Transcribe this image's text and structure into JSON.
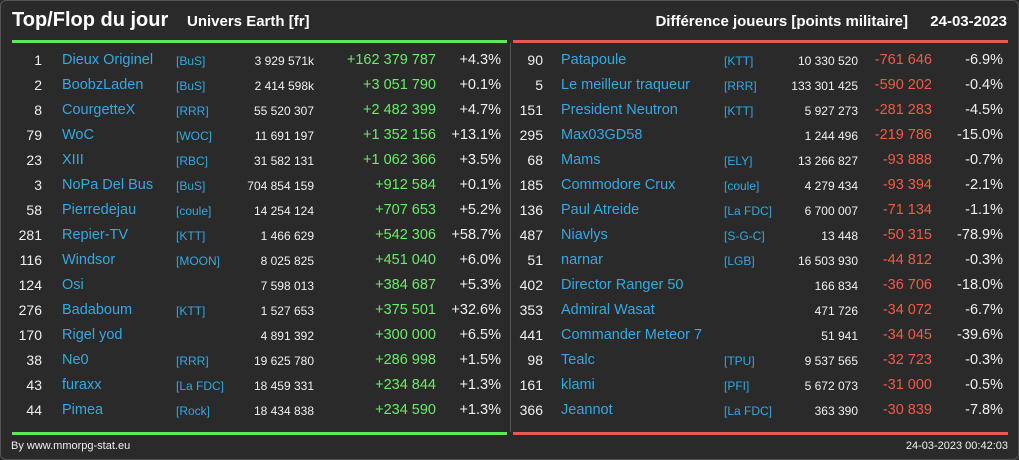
{
  "header": {
    "title": "Top/Flop du jour",
    "universe": "Univers Earth [fr]",
    "subtitle": "Différence joueurs [points militaire]",
    "date": "24-03-2023"
  },
  "colors": {
    "positive": "#6bea6b",
    "negative": "#f05a4a",
    "link": "#35a8e0",
    "background": "#2a2a2a"
  },
  "top": [
    {
      "rank": "1",
      "name": "Dieux Originel",
      "tag": "[BuS]",
      "points": "3 929 571k",
      "diff": "+162 379 787",
      "pct": "+4.3%"
    },
    {
      "rank": "2",
      "name": "BoobzLaden",
      "tag": "[BuS]",
      "points": "2 414 598k",
      "diff": "+3 051 790",
      "pct": "+0.1%"
    },
    {
      "rank": "8",
      "name": "CourgetteX",
      "tag": "[RRR]",
      "points": "55 520 307",
      "diff": "+2 482 399",
      "pct": "+4.7%"
    },
    {
      "rank": "79",
      "name": "WoC",
      "tag": "[WOC]",
      "points": "11 691 197",
      "diff": "+1 352 156",
      "pct": "+13.1%"
    },
    {
      "rank": "23",
      "name": "XIII",
      "tag": "[RBC]",
      "points": "31 582 131",
      "diff": "+1 062 366",
      "pct": "+3.5%"
    },
    {
      "rank": "3",
      "name": "NoPa Del Bus",
      "tag": "[BuS]",
      "points": "704 854 159",
      "diff": "+912 584",
      "pct": "+0.1%"
    },
    {
      "rank": "58",
      "name": "Pierredejau",
      "tag": "[coule]",
      "points": "14 254 124",
      "diff": "+707 653",
      "pct": "+5.2%"
    },
    {
      "rank": "281",
      "name": "Repier-TV",
      "tag": "[KTT]",
      "points": "1 466 629",
      "diff": "+542 306",
      "pct": "+58.7%"
    },
    {
      "rank": "116",
      "name": "Windsor",
      "tag": "[MOON]",
      "points": "8 025 825",
      "diff": "+451 040",
      "pct": "+6.0%"
    },
    {
      "rank": "124",
      "name": "Osi",
      "tag": "",
      "points": "7 598 013",
      "diff": "+384 687",
      "pct": "+5.3%"
    },
    {
      "rank": "276",
      "name": "Badaboum",
      "tag": "[KTT]",
      "points": "1 527 653",
      "diff": "+375 501",
      "pct": "+32.6%"
    },
    {
      "rank": "170",
      "name": "Rigel yod",
      "tag": "",
      "points": "4 891 392",
      "diff": "+300 000",
      "pct": "+6.5%"
    },
    {
      "rank": "38",
      "name": "Ne0",
      "tag": "[RRR]",
      "points": "19 625 780",
      "diff": "+286 998",
      "pct": "+1.5%"
    },
    {
      "rank": "43",
      "name": "furaxx",
      "tag": "[La FDC]",
      "points": "18 459 331",
      "diff": "+234 844",
      "pct": "+1.3%"
    },
    {
      "rank": "44",
      "name": "Pimea",
      "tag": "[Rock]",
      "points": "18 434 838",
      "diff": "+234 590",
      "pct": "+1.3%"
    }
  ],
  "flop": [
    {
      "rank": "90",
      "name": "Patapoule",
      "tag": "[KTT]",
      "points": "10 330 520",
      "diff": "-761 646",
      "pct": "-6.9%"
    },
    {
      "rank": "5",
      "name": "Le meilleur traqueur",
      "tag": "[RRR]",
      "points": "133 301 425",
      "diff": "-590 202",
      "pct": "-0.4%"
    },
    {
      "rank": "151",
      "name": "President Neutron",
      "tag": "[KTT]",
      "points": "5 927 273",
      "diff": "-281 283",
      "pct": "-4.5%"
    },
    {
      "rank": "295",
      "name": "Max03GD58",
      "tag": "",
      "points": "1 244 496",
      "diff": "-219 786",
      "pct": "-15.0%"
    },
    {
      "rank": "68",
      "name": "Mams",
      "tag": "[ELY]",
      "points": "13 266 827",
      "diff": "-93 888",
      "pct": "-0.7%"
    },
    {
      "rank": "185",
      "name": "Commodore Crux",
      "tag": "[coule]",
      "points": "4 279 434",
      "diff": "-93 394",
      "pct": "-2.1%"
    },
    {
      "rank": "136",
      "name": "Paul Atreide",
      "tag": "[La FDC]",
      "points": "6 700 007",
      "diff": "-71 134",
      "pct": "-1.1%"
    },
    {
      "rank": "487",
      "name": "Niavlys",
      "tag": "[S-G-C]",
      "points": "13 448",
      "diff": "-50 315",
      "pct": "-78.9%"
    },
    {
      "rank": "51",
      "name": "narnar",
      "tag": "[LGB]",
      "points": "16 503 930",
      "diff": "-44 812",
      "pct": "-0.3%"
    },
    {
      "rank": "402",
      "name": "Director Ranger 50",
      "tag": "",
      "points": "166 834",
      "diff": "-36 706",
      "pct": "-18.0%"
    },
    {
      "rank": "353",
      "name": "Admiral Wasat",
      "tag": "",
      "points": "471 726",
      "diff": "-34 072",
      "pct": "-6.7%"
    },
    {
      "rank": "441",
      "name": "Commander Meteor 7",
      "tag": "",
      "points": "51 941",
      "diff": "-34 045",
      "pct": "-39.6%"
    },
    {
      "rank": "98",
      "name": "Tealc",
      "tag": "[TPU]",
      "points": "9 537 565",
      "diff": "-32 723",
      "pct": "-0.3%"
    },
    {
      "rank": "161",
      "name": "klami",
      "tag": "[PFI]",
      "points": "5 672 073",
      "diff": "-31 000",
      "pct": "-0.5%"
    },
    {
      "rank": "366",
      "name": "Jeannot",
      "tag": "[La FDC]",
      "points": "363 390",
      "diff": "-30 839",
      "pct": "-7.8%"
    }
  ],
  "footer": {
    "credit": "By www.mmorpg-stat.eu",
    "timestamp": "24-03-2023 00:42:03"
  }
}
